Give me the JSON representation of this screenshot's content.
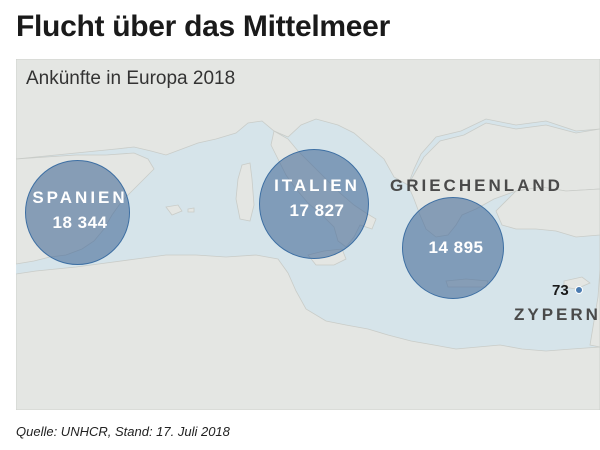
{
  "title": "Flucht über das Mittelmeer",
  "subtitle": "Ankünfte in Europa 2018",
  "source": "Quelle: UNHCR, Stand: 17. Juli 2018",
  "colors": {
    "sea": "#d6e4ea",
    "land": "#e4e6e3",
    "bubble_fill": "#426896",
    "bubble_stroke": "#3d6fa3"
  },
  "arrivals": [
    {
      "country": "SPANIEN",
      "value": "18 344",
      "number": 18344
    },
    {
      "country": "ITALIEN",
      "value": "17 827",
      "number": 17827
    },
    {
      "country": "GRIECHENLAND",
      "value": "14 895",
      "number": 14895
    },
    {
      "country": "ZYPERN",
      "value": "73",
      "number": 73
    }
  ]
}
